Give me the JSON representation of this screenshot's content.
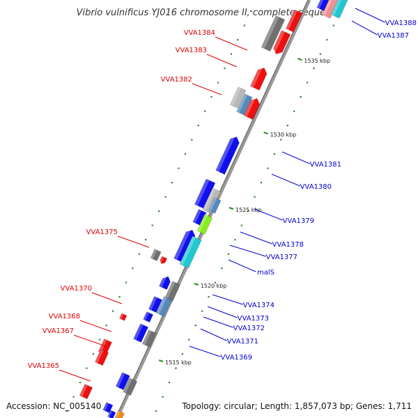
{
  "title": "Vibrio vulnificus YJ016 chromosome II, complete sequence",
  "footer": {
    "accession": "Accession: NC_005140",
    "topology": "Topology: circular; Length: 1,857,073 bp; Genes: 1,711"
  },
  "colors": {
    "backbone": "#8a8a8a",
    "forward_label": "#0000cc",
    "reverse_label": "#dd0000",
    "tick": "#2a8a2a"
  },
  "ticks": [
    "1535 kbp",
    "1530 kbp",
    "1525 kbp",
    "1520 kbp",
    "1515 kbp"
  ],
  "genes_forward": [
    "VVA1388",
    "VVA1387",
    "VVA1381",
    "VVA1380",
    "VVA1379",
    "VVA1378",
    "VVA1377",
    "malS",
    "VVA1374",
    "VVA1373",
    "VVA1372",
    "VVA1371",
    "VVA1369"
  ],
  "genes_reverse": [
    "VVA1384",
    "VVA1383",
    "VVA1382",
    "VVA1375",
    "VVA1370",
    "VVA1368",
    "VVA1367",
    "VVA1365"
  ]
}
